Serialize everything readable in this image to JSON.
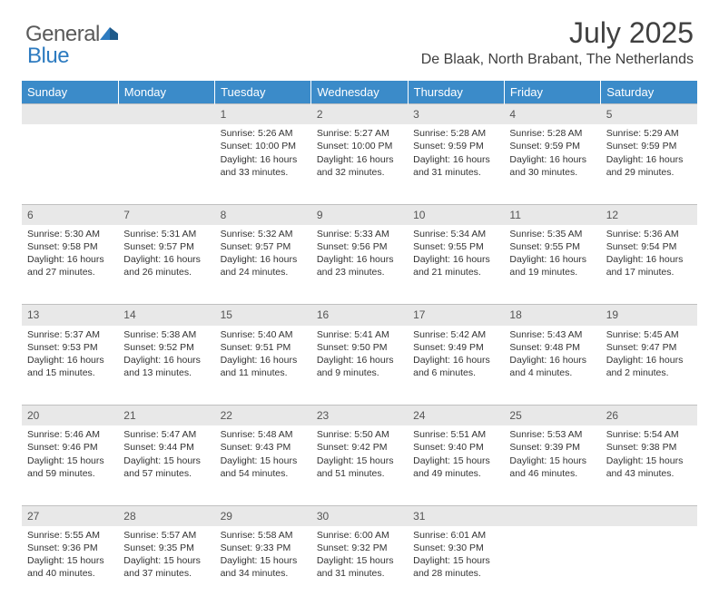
{
  "brand": {
    "general": "General",
    "blue": "Blue"
  },
  "title": "July 2025",
  "location": "De Blaak, North Brabant, The Netherlands",
  "colors": {
    "header_bg": "#3b8bc9",
    "header_text": "#ffffff",
    "daynum_bg": "#e8e8e8",
    "logo_gray": "#5a5a5a",
    "logo_blue": "#2d7bc0",
    "body_text": "#333333"
  },
  "typography": {
    "title_fontsize": 32,
    "location_fontsize": 16,
    "dayheader_fontsize": 13,
    "cell_fontsize": 10.5
  },
  "day_headers": [
    "Sunday",
    "Monday",
    "Tuesday",
    "Wednesday",
    "Thursday",
    "Friday",
    "Saturday"
  ],
  "weeks": [
    [
      null,
      null,
      {
        "n": "1",
        "sr": "5:26 AM",
        "ss": "10:00 PM",
        "dl1": "16 hours",
        "dl2": "and 33 minutes."
      },
      {
        "n": "2",
        "sr": "5:27 AM",
        "ss": "10:00 PM",
        "dl1": "16 hours",
        "dl2": "and 32 minutes."
      },
      {
        "n": "3",
        "sr": "5:28 AM",
        "ss": "9:59 PM",
        "dl1": "16 hours",
        "dl2": "and 31 minutes."
      },
      {
        "n": "4",
        "sr": "5:28 AM",
        "ss": "9:59 PM",
        "dl1": "16 hours",
        "dl2": "and 30 minutes."
      },
      {
        "n": "5",
        "sr": "5:29 AM",
        "ss": "9:59 PM",
        "dl1": "16 hours",
        "dl2": "and 29 minutes."
      }
    ],
    [
      {
        "n": "6",
        "sr": "5:30 AM",
        "ss": "9:58 PM",
        "dl1": "16 hours",
        "dl2": "and 27 minutes."
      },
      {
        "n": "7",
        "sr": "5:31 AM",
        "ss": "9:57 PM",
        "dl1": "16 hours",
        "dl2": "and 26 minutes."
      },
      {
        "n": "8",
        "sr": "5:32 AM",
        "ss": "9:57 PM",
        "dl1": "16 hours",
        "dl2": "and 24 minutes."
      },
      {
        "n": "9",
        "sr": "5:33 AM",
        "ss": "9:56 PM",
        "dl1": "16 hours",
        "dl2": "and 23 minutes."
      },
      {
        "n": "10",
        "sr": "5:34 AM",
        "ss": "9:55 PM",
        "dl1": "16 hours",
        "dl2": "and 21 minutes."
      },
      {
        "n": "11",
        "sr": "5:35 AM",
        "ss": "9:55 PM",
        "dl1": "16 hours",
        "dl2": "and 19 minutes."
      },
      {
        "n": "12",
        "sr": "5:36 AM",
        "ss": "9:54 PM",
        "dl1": "16 hours",
        "dl2": "and 17 minutes."
      }
    ],
    [
      {
        "n": "13",
        "sr": "5:37 AM",
        "ss": "9:53 PM",
        "dl1": "16 hours",
        "dl2": "and 15 minutes."
      },
      {
        "n": "14",
        "sr": "5:38 AM",
        "ss": "9:52 PM",
        "dl1": "16 hours",
        "dl2": "and 13 minutes."
      },
      {
        "n": "15",
        "sr": "5:40 AM",
        "ss": "9:51 PM",
        "dl1": "16 hours",
        "dl2": "and 11 minutes."
      },
      {
        "n": "16",
        "sr": "5:41 AM",
        "ss": "9:50 PM",
        "dl1": "16 hours",
        "dl2": "and 9 minutes."
      },
      {
        "n": "17",
        "sr": "5:42 AM",
        "ss": "9:49 PM",
        "dl1": "16 hours",
        "dl2": "and 6 minutes."
      },
      {
        "n": "18",
        "sr": "5:43 AM",
        "ss": "9:48 PM",
        "dl1": "16 hours",
        "dl2": "and 4 minutes."
      },
      {
        "n": "19",
        "sr": "5:45 AM",
        "ss": "9:47 PM",
        "dl1": "16 hours",
        "dl2": "and 2 minutes."
      }
    ],
    [
      {
        "n": "20",
        "sr": "5:46 AM",
        "ss": "9:46 PM",
        "dl1": "15 hours",
        "dl2": "and 59 minutes."
      },
      {
        "n": "21",
        "sr": "5:47 AM",
        "ss": "9:44 PM",
        "dl1": "15 hours",
        "dl2": "and 57 minutes."
      },
      {
        "n": "22",
        "sr": "5:48 AM",
        "ss": "9:43 PM",
        "dl1": "15 hours",
        "dl2": "and 54 minutes."
      },
      {
        "n": "23",
        "sr": "5:50 AM",
        "ss": "9:42 PM",
        "dl1": "15 hours",
        "dl2": "and 51 minutes."
      },
      {
        "n": "24",
        "sr": "5:51 AM",
        "ss": "9:40 PM",
        "dl1": "15 hours",
        "dl2": "and 49 minutes."
      },
      {
        "n": "25",
        "sr": "5:53 AM",
        "ss": "9:39 PM",
        "dl1": "15 hours",
        "dl2": "and 46 minutes."
      },
      {
        "n": "26",
        "sr": "5:54 AM",
        "ss": "9:38 PM",
        "dl1": "15 hours",
        "dl2": "and 43 minutes."
      }
    ],
    [
      {
        "n": "27",
        "sr": "5:55 AM",
        "ss": "9:36 PM",
        "dl1": "15 hours",
        "dl2": "and 40 minutes."
      },
      {
        "n": "28",
        "sr": "5:57 AM",
        "ss": "9:35 PM",
        "dl1": "15 hours",
        "dl2": "and 37 minutes."
      },
      {
        "n": "29",
        "sr": "5:58 AM",
        "ss": "9:33 PM",
        "dl1": "15 hours",
        "dl2": "and 34 minutes."
      },
      {
        "n": "30",
        "sr": "6:00 AM",
        "ss": "9:32 PM",
        "dl1": "15 hours",
        "dl2": "and 31 minutes."
      },
      {
        "n": "31",
        "sr": "6:01 AM",
        "ss": "9:30 PM",
        "dl1": "15 hours",
        "dl2": "and 28 minutes."
      },
      null,
      null
    ]
  ],
  "labels": {
    "sunrise": "Sunrise: ",
    "sunset": "Sunset: ",
    "daylight": "Daylight: "
  }
}
